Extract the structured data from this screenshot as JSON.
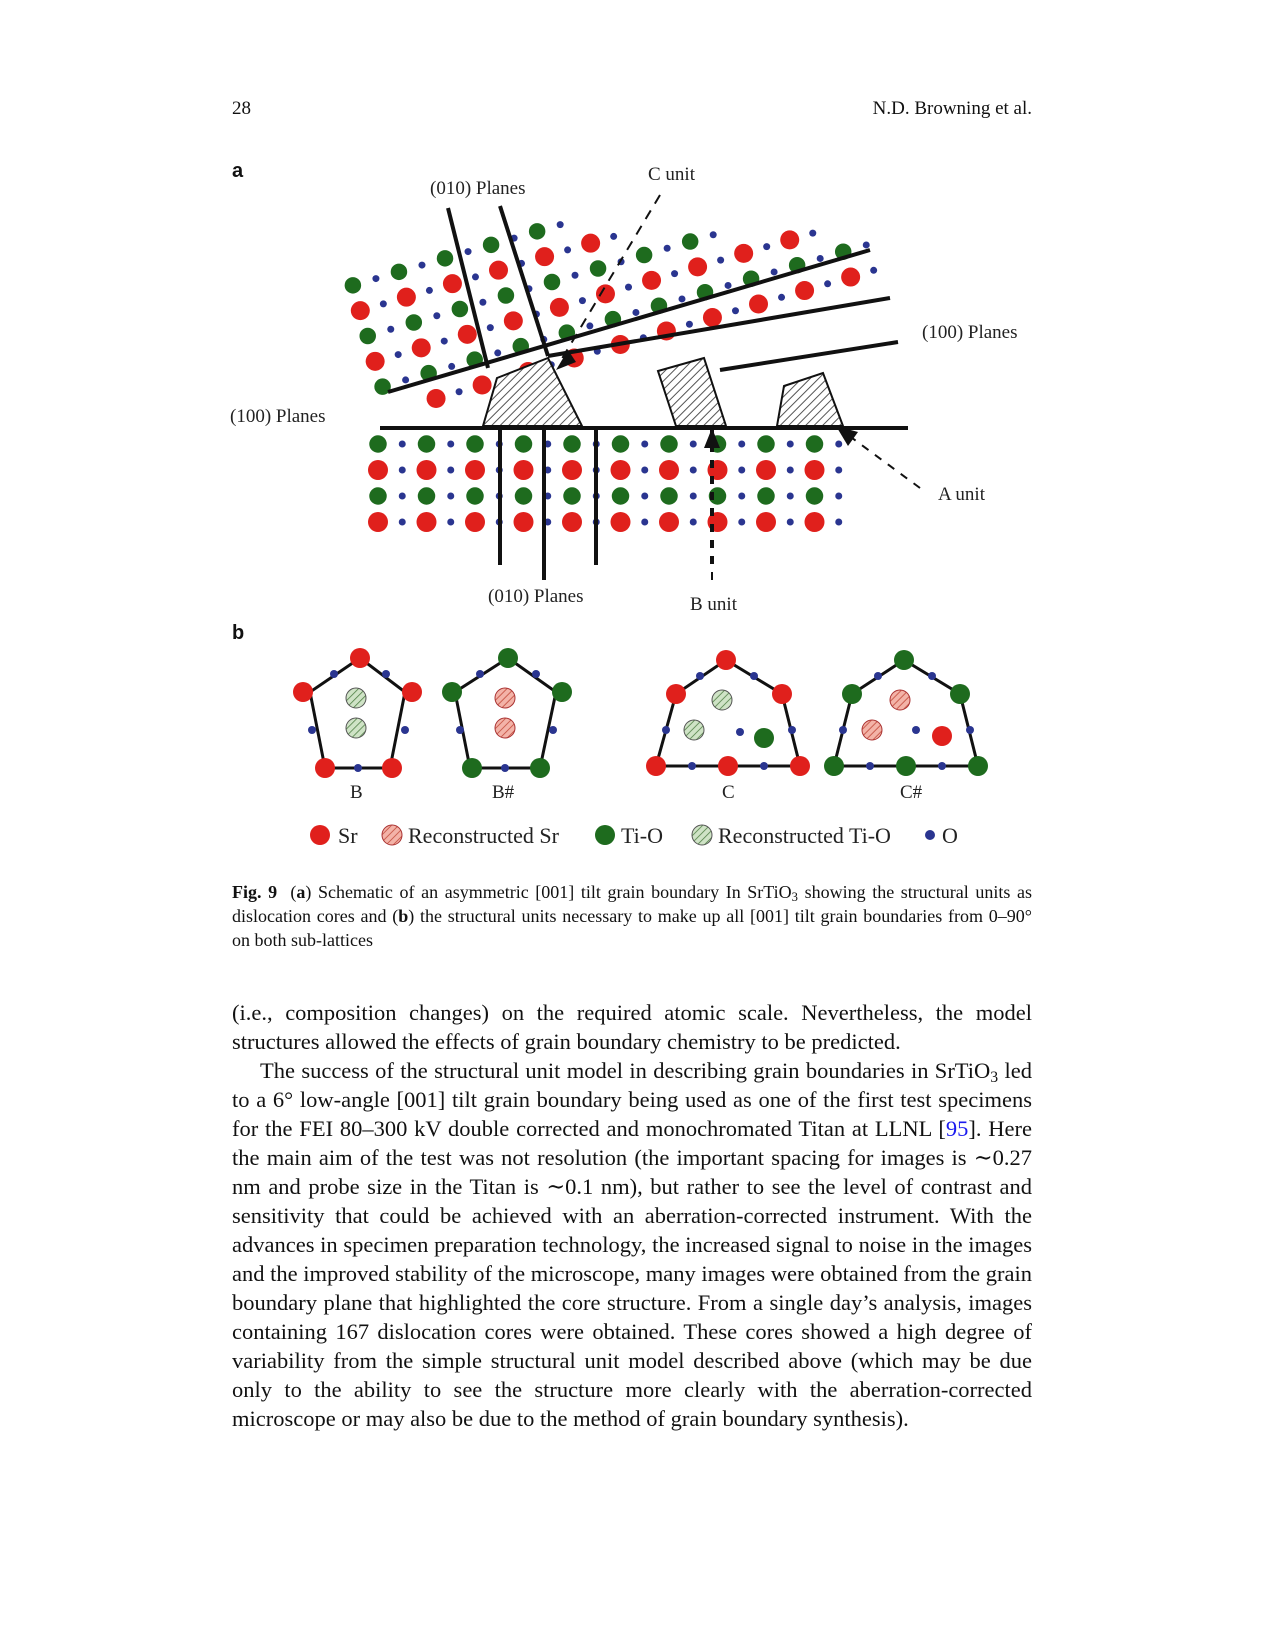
{
  "header": {
    "page_number": "28",
    "authors": "N.D. Browning et al."
  },
  "figure": {
    "panel_a": {
      "letter": "a",
      "labels": {
        "planes_010_top": "(010) Planes",
        "c_unit": "C unit",
        "planes_100_right": "(100) Planes",
        "planes_100_left": "(100) Planes",
        "a_unit": "A unit",
        "planes_010_bottom": "(010) Planes",
        "b_unit": "B unit"
      }
    },
    "panel_b": {
      "letter": "b",
      "units": [
        "B",
        "B#",
        "C",
        "C#"
      ]
    },
    "legend": [
      {
        "label": "Sr",
        "kind": "sr"
      },
      {
        "label": "Reconstructed Sr",
        "kind": "rsr"
      },
      {
        "label": "Ti-O",
        "kind": "tio"
      },
      {
        "label": "Reconstructed Ti-O",
        "kind": "rtio"
      },
      {
        "label": "O",
        "kind": "o"
      }
    ],
    "colors": {
      "sr": "#e0201c",
      "tio": "#1e6b1e",
      "o": "#2a3590",
      "edge": "#111111"
    }
  },
  "caption": {
    "fig_label": "Fig. 9",
    "part_a": "a",
    "text_a": "Schematic of an asymmetric [001] tilt grain boundary In SrTiO",
    "sub3": "3",
    "text_b": " showing the structural units as dislocation cores and ",
    "part_b": "b",
    "text_c": " the structural units necessary to make up all [001] tilt grain boundaries from 0–90° on both sub-lattices"
  },
  "body": {
    "p1": "(i.e., composition changes) on the required atomic scale. Nevertheless, the model structures allowed the effects of grain boundary chemistry to be predicted.",
    "p2_a": "The success of the structural unit model in describing grain boundaries in SrTiO",
    "p2_sub": "3",
    "p2_b": " led to a 6° low-angle [001] tilt grain boundary being used as one of the first test specimens for the FEI 80–300 kV double corrected and monochromated Titan at LLNL [",
    "p2_ref": "95",
    "p2_c": "]. Here the main aim of the test was not resolution (the important spacing for images is ∼0.27 nm and probe size in the Titan is ∼0.1 nm), but rather to see the level of contrast and sensitivity that could be achieved with an aberration-corrected instrument. With the advances in specimen preparation technology, the increased signal to noise in the images and the improved stability of the microscope, many images were obtained from the grain boundary plane that highlighted the core structure. From a single day’s analysis, images containing 167 dislocation cores were obtained. These cores showed a high degree of variability from the simple structural unit model described above (which may be due only to the ability to see the structure more clearly with the aberration-corrected microscope or may also be due to the method of grain boundary synthesis)."
  }
}
